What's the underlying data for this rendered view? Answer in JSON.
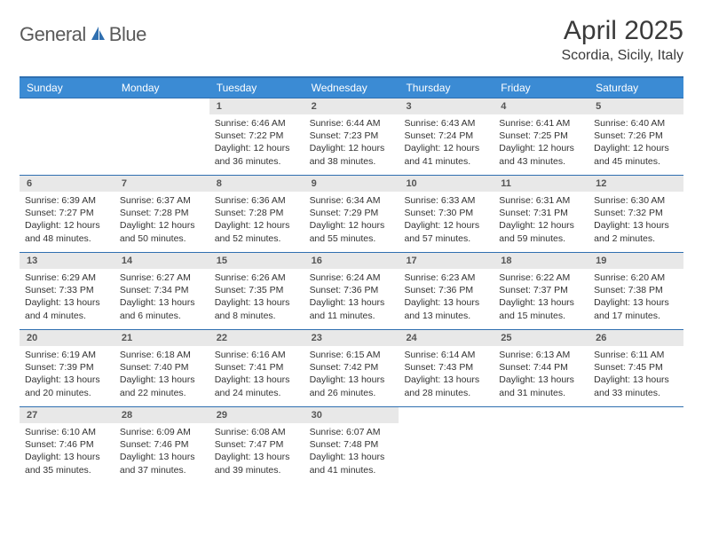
{
  "logo": {
    "part1": "General",
    "part2": "Blue",
    "icon_color": "#2f6fb0"
  },
  "title": "April 2025",
  "location": "Scordia, Sicily, Italy",
  "colors": {
    "header_bg": "#3b8bd4",
    "border": "#2f6fb0",
    "daynum_bg": "#e8e8e8",
    "text": "#333333"
  },
  "day_names": [
    "Sunday",
    "Monday",
    "Tuesday",
    "Wednesday",
    "Thursday",
    "Friday",
    "Saturday"
  ],
  "weeks": [
    [
      {
        "day": "",
        "sunrise": "",
        "sunset": "",
        "daylight": ""
      },
      {
        "day": "",
        "sunrise": "",
        "sunset": "",
        "daylight": ""
      },
      {
        "day": "1",
        "sunrise": "Sunrise: 6:46 AM",
        "sunset": "Sunset: 7:22 PM",
        "daylight": "Daylight: 12 hours and 36 minutes."
      },
      {
        "day": "2",
        "sunrise": "Sunrise: 6:44 AM",
        "sunset": "Sunset: 7:23 PM",
        "daylight": "Daylight: 12 hours and 38 minutes."
      },
      {
        "day": "3",
        "sunrise": "Sunrise: 6:43 AM",
        "sunset": "Sunset: 7:24 PM",
        "daylight": "Daylight: 12 hours and 41 minutes."
      },
      {
        "day": "4",
        "sunrise": "Sunrise: 6:41 AM",
        "sunset": "Sunset: 7:25 PM",
        "daylight": "Daylight: 12 hours and 43 minutes."
      },
      {
        "day": "5",
        "sunrise": "Sunrise: 6:40 AM",
        "sunset": "Sunset: 7:26 PM",
        "daylight": "Daylight: 12 hours and 45 minutes."
      }
    ],
    [
      {
        "day": "6",
        "sunrise": "Sunrise: 6:39 AM",
        "sunset": "Sunset: 7:27 PM",
        "daylight": "Daylight: 12 hours and 48 minutes."
      },
      {
        "day": "7",
        "sunrise": "Sunrise: 6:37 AM",
        "sunset": "Sunset: 7:28 PM",
        "daylight": "Daylight: 12 hours and 50 minutes."
      },
      {
        "day": "8",
        "sunrise": "Sunrise: 6:36 AM",
        "sunset": "Sunset: 7:28 PM",
        "daylight": "Daylight: 12 hours and 52 minutes."
      },
      {
        "day": "9",
        "sunrise": "Sunrise: 6:34 AM",
        "sunset": "Sunset: 7:29 PM",
        "daylight": "Daylight: 12 hours and 55 minutes."
      },
      {
        "day": "10",
        "sunrise": "Sunrise: 6:33 AM",
        "sunset": "Sunset: 7:30 PM",
        "daylight": "Daylight: 12 hours and 57 minutes."
      },
      {
        "day": "11",
        "sunrise": "Sunrise: 6:31 AM",
        "sunset": "Sunset: 7:31 PM",
        "daylight": "Daylight: 12 hours and 59 minutes."
      },
      {
        "day": "12",
        "sunrise": "Sunrise: 6:30 AM",
        "sunset": "Sunset: 7:32 PM",
        "daylight": "Daylight: 13 hours and 2 minutes."
      }
    ],
    [
      {
        "day": "13",
        "sunrise": "Sunrise: 6:29 AM",
        "sunset": "Sunset: 7:33 PM",
        "daylight": "Daylight: 13 hours and 4 minutes."
      },
      {
        "day": "14",
        "sunrise": "Sunrise: 6:27 AM",
        "sunset": "Sunset: 7:34 PM",
        "daylight": "Daylight: 13 hours and 6 minutes."
      },
      {
        "day": "15",
        "sunrise": "Sunrise: 6:26 AM",
        "sunset": "Sunset: 7:35 PM",
        "daylight": "Daylight: 13 hours and 8 minutes."
      },
      {
        "day": "16",
        "sunrise": "Sunrise: 6:24 AM",
        "sunset": "Sunset: 7:36 PM",
        "daylight": "Daylight: 13 hours and 11 minutes."
      },
      {
        "day": "17",
        "sunrise": "Sunrise: 6:23 AM",
        "sunset": "Sunset: 7:36 PM",
        "daylight": "Daylight: 13 hours and 13 minutes."
      },
      {
        "day": "18",
        "sunrise": "Sunrise: 6:22 AM",
        "sunset": "Sunset: 7:37 PM",
        "daylight": "Daylight: 13 hours and 15 minutes."
      },
      {
        "day": "19",
        "sunrise": "Sunrise: 6:20 AM",
        "sunset": "Sunset: 7:38 PM",
        "daylight": "Daylight: 13 hours and 17 minutes."
      }
    ],
    [
      {
        "day": "20",
        "sunrise": "Sunrise: 6:19 AM",
        "sunset": "Sunset: 7:39 PM",
        "daylight": "Daylight: 13 hours and 20 minutes."
      },
      {
        "day": "21",
        "sunrise": "Sunrise: 6:18 AM",
        "sunset": "Sunset: 7:40 PM",
        "daylight": "Daylight: 13 hours and 22 minutes."
      },
      {
        "day": "22",
        "sunrise": "Sunrise: 6:16 AM",
        "sunset": "Sunset: 7:41 PM",
        "daylight": "Daylight: 13 hours and 24 minutes."
      },
      {
        "day": "23",
        "sunrise": "Sunrise: 6:15 AM",
        "sunset": "Sunset: 7:42 PM",
        "daylight": "Daylight: 13 hours and 26 minutes."
      },
      {
        "day": "24",
        "sunrise": "Sunrise: 6:14 AM",
        "sunset": "Sunset: 7:43 PM",
        "daylight": "Daylight: 13 hours and 28 minutes."
      },
      {
        "day": "25",
        "sunrise": "Sunrise: 6:13 AM",
        "sunset": "Sunset: 7:44 PM",
        "daylight": "Daylight: 13 hours and 31 minutes."
      },
      {
        "day": "26",
        "sunrise": "Sunrise: 6:11 AM",
        "sunset": "Sunset: 7:45 PM",
        "daylight": "Daylight: 13 hours and 33 minutes."
      }
    ],
    [
      {
        "day": "27",
        "sunrise": "Sunrise: 6:10 AM",
        "sunset": "Sunset: 7:46 PM",
        "daylight": "Daylight: 13 hours and 35 minutes."
      },
      {
        "day": "28",
        "sunrise": "Sunrise: 6:09 AM",
        "sunset": "Sunset: 7:46 PM",
        "daylight": "Daylight: 13 hours and 37 minutes."
      },
      {
        "day": "29",
        "sunrise": "Sunrise: 6:08 AM",
        "sunset": "Sunset: 7:47 PM",
        "daylight": "Daylight: 13 hours and 39 minutes."
      },
      {
        "day": "30",
        "sunrise": "Sunrise: 6:07 AM",
        "sunset": "Sunset: 7:48 PM",
        "daylight": "Daylight: 13 hours and 41 minutes."
      },
      {
        "day": "",
        "sunrise": "",
        "sunset": "",
        "daylight": ""
      },
      {
        "day": "",
        "sunrise": "",
        "sunset": "",
        "daylight": ""
      },
      {
        "day": "",
        "sunrise": "",
        "sunset": "",
        "daylight": ""
      }
    ]
  ]
}
